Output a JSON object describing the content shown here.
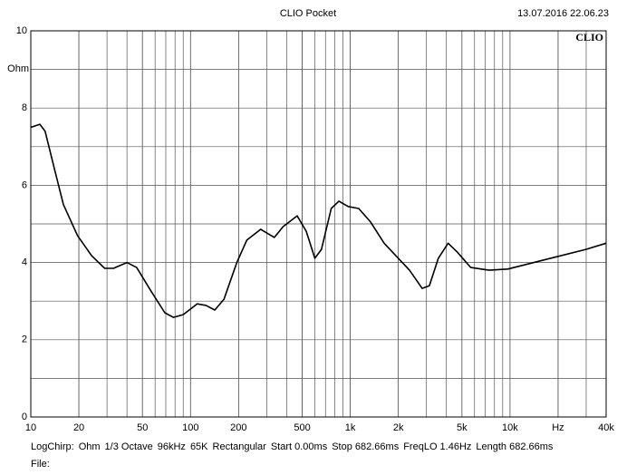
{
  "chart_data": {
    "type": "line",
    "title": "CLIO Pocket",
    "timestamp": "13.07.2016 22.06.23",
    "logo": "CLIO",
    "ylabel": "Ohm",
    "x": [
      10,
      11.4,
      12.3,
      14,
      16,
      19.6,
      24,
      29,
      33,
      40,
      46,
      56,
      69,
      78,
      90,
      110,
      125,
      142,
      162,
      195,
      225,
      275,
      335,
      380,
      465,
      530,
      600,
      660,
      760,
      850,
      970,
      1130,
      1340,
      1630,
      2000,
      2350,
      2820,
      3130,
      3560,
      4100,
      4680,
      5680,
      7400,
      9700,
      17600,
      29900,
      40000
    ],
    "values": [
      7.5,
      7.58,
      7.4,
      6.45,
      5.5,
      4.7,
      4.18,
      3.85,
      3.85,
      4.0,
      3.87,
      3.29,
      2.7,
      2.58,
      2.65,
      2.93,
      2.89,
      2.77,
      3.05,
      4.0,
      4.58,
      4.86,
      4.65,
      4.93,
      5.21,
      4.81,
      4.11,
      4.34,
      5.4,
      5.59,
      5.45,
      5.4,
      5.05,
      4.5,
      4.11,
      3.8,
      3.33,
      3.4,
      4.11,
      4.5,
      4.27,
      3.87,
      3.8,
      3.83,
      4.1,
      4.34,
      4.5
    ],
    "color": "#000000",
    "xscale": "log",
    "xlim": [
      10,
      40000
    ],
    "xticks": [
      10,
      20,
      50,
      100,
      200,
      500,
      {
        "value": 1000,
        "label": "1k"
      },
      {
        "value": 2000,
        "label": "2k"
      },
      {
        "value": 5000,
        "label": "5k"
      },
      {
        "value": 10000,
        "label": "10k"
      },
      {
        "value": 20000,
        "label": "Hz"
      },
      {
        "value": 40000,
        "label": "40k"
      }
    ],
    "ylim": [
      0,
      10
    ],
    "yticks": [
      0,
      2,
      4,
      6,
      8,
      10
    ],
    "grid": true,
    "settings": [
      "LogChirp:",
      "Ohm",
      "1/3 Octave",
      "96kHz",
      "65K",
      "Rectangular",
      "Start 0.00ms",
      "Stop 682.66ms",
      "FreqLO 1.46Hz",
      "Length 682.66ms"
    ],
    "file": "File:"
  }
}
